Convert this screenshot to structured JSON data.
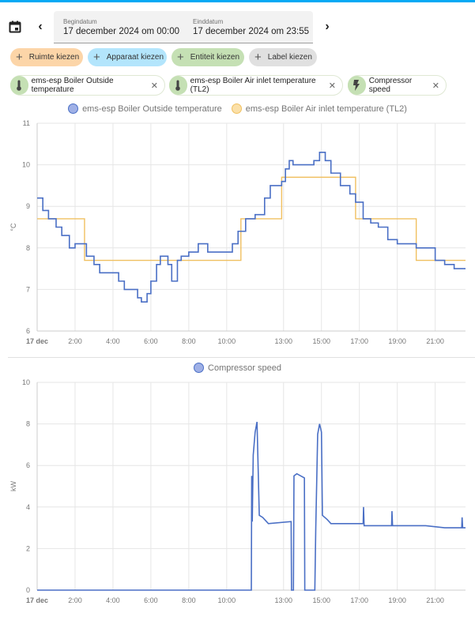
{
  "colors": {
    "accent": "#03a9f4",
    "series_blue": "#4a6fc5",
    "series_orange": "#f0c060",
    "chip_area": "#fcd5a8",
    "chip_device": "#b3e5fc",
    "chip_entity": "#c5e0b4",
    "chip_label": "#e0e0e0"
  },
  "header": {
    "calendar_icon": "calendar-icon",
    "start_label": "Begindatum",
    "start_value": "17 december 2024 om 00:00",
    "end_label": "Einddatum",
    "end_value": "17 december 2024 om 23:55"
  },
  "pickers": [
    {
      "label": "Ruimte kiezen"
    },
    {
      "label": "Apparaat kiezen"
    },
    {
      "label": "Entiteit kiezen"
    },
    {
      "label": "Label kiezen"
    }
  ],
  "entities": [
    {
      "label": "ems-esp Boiler Outside temperature",
      "icon": "thermometer-icon"
    },
    {
      "label": "ems-esp Boiler Air inlet temperature (TL2)",
      "icon": "thermometer-icon"
    },
    {
      "label": "Compressor speed",
      "icon": "lightning-icon"
    }
  ],
  "chart_data": [
    {
      "type": "line",
      "ylabel": "°C",
      "ylim": [
        6,
        11
      ],
      "yticks": [
        "6",
        "7",
        "8",
        "9",
        "10",
        "11"
      ],
      "xlim_hours": [
        0,
        22.6
      ],
      "xticks": [
        {
          "h": 0,
          "label": "17 dec"
        },
        {
          "h": 2,
          "label": "2:00"
        },
        {
          "h": 4,
          "label": "4:00"
        },
        {
          "h": 6,
          "label": "6:00"
        },
        {
          "h": 8,
          "label": "8:00"
        },
        {
          "h": 10,
          "label": "10:00"
        },
        {
          "h": 13,
          "label": "13:00"
        },
        {
          "h": 15,
          "label": "15:00"
        },
        {
          "h": 17,
          "label": "17:00"
        },
        {
          "h": 19,
          "label": "19:00"
        },
        {
          "h": 21,
          "label": "21:00"
        }
      ],
      "grid": true,
      "legend": "top-center",
      "series": [
        {
          "name": "ems-esp Boiler Outside temperature",
          "color": "#4a6fc5",
          "step": true,
          "points": [
            [
              0,
              9.2
            ],
            [
              0.3,
              8.9
            ],
            [
              0.6,
              8.7
            ],
            [
              1,
              8.5
            ],
            [
              1.3,
              8.3
            ],
            [
              1.7,
              8.0
            ],
            [
              2,
              8.1
            ],
            [
              2.3,
              8.1
            ],
            [
              2.6,
              7.8
            ],
            [
              3,
              7.6
            ],
            [
              3.3,
              7.4
            ],
            [
              4,
              7.4
            ],
            [
              4.3,
              7.2
            ],
            [
              4.6,
              7.0
            ],
            [
              5,
              7.0
            ],
            [
              5.3,
              6.8
            ],
            [
              5.5,
              6.7
            ],
            [
              5.8,
              6.9
            ],
            [
              6,
              7.2
            ],
            [
              6.3,
              7.6
            ],
            [
              6.5,
              7.8
            ],
            [
              6.9,
              7.6
            ],
            [
              7.1,
              7.2
            ],
            [
              7.4,
              7.7
            ],
            [
              7.6,
              7.8
            ],
            [
              8,
              7.9
            ],
            [
              8.5,
              8.1
            ],
            [
              9,
              7.9
            ],
            [
              10,
              7.9
            ],
            [
              10.3,
              8.1
            ],
            [
              10.6,
              8.4
            ],
            [
              11,
              8.7
            ],
            [
              11.5,
              8.8
            ],
            [
              12,
              9.2
            ],
            [
              12.3,
              9.5
            ],
            [
              12.9,
              9.6
            ],
            [
              13.1,
              9.9
            ],
            [
              13.3,
              10.1
            ],
            [
              13.5,
              10.0
            ],
            [
              14.3,
              10.0
            ],
            [
              14.6,
              10.1
            ],
            [
              14.9,
              10.3
            ],
            [
              15.2,
              10.1
            ],
            [
              15.5,
              9.8
            ],
            [
              16,
              9.5
            ],
            [
              16.5,
              9.3
            ],
            [
              16.8,
              9.1
            ],
            [
              17.2,
              8.7
            ],
            [
              17.6,
              8.6
            ],
            [
              18,
              8.5
            ],
            [
              18.5,
              8.2
            ],
            [
              19,
              8.1
            ],
            [
              19.6,
              8.1
            ],
            [
              20,
              8.0
            ],
            [
              20.5,
              8.0
            ],
            [
              21,
              7.7
            ],
            [
              21.5,
              7.6
            ],
            [
              22,
              7.5
            ],
            [
              22.6,
              7.5
            ]
          ]
        },
        {
          "name": "ems-esp Boiler Air inlet temperature (TL2)",
          "color": "#f0c060",
          "step": true,
          "points": [
            [
              0,
              8.7
            ],
            [
              2.5,
              7.7
            ],
            [
              10.75,
              8.7
            ],
            [
              12.9,
              9.7
            ],
            [
              16.8,
              8.7
            ],
            [
              20.0,
              7.7
            ],
            [
              22.6,
              7.7
            ]
          ]
        }
      ]
    },
    {
      "type": "line",
      "ylabel": "kW",
      "ylim": [
        0,
        10
      ],
      "yticks": [
        "0",
        "2",
        "4",
        "6",
        "8",
        "10"
      ],
      "xlim_hours": [
        0,
        22.6
      ],
      "xticks": [
        {
          "h": 0,
          "label": "17 dec"
        },
        {
          "h": 2,
          "label": "2:00"
        },
        {
          "h": 4,
          "label": "4:00"
        },
        {
          "h": 6,
          "label": "6:00"
        },
        {
          "h": 8,
          "label": "8:00"
        },
        {
          "h": 10,
          "label": "10:00"
        },
        {
          "h": 13,
          "label": "13:00"
        },
        {
          "h": 15,
          "label": "15:00"
        },
        {
          "h": 17,
          "label": "17:00"
        },
        {
          "h": 19,
          "label": "19:00"
        },
        {
          "h": 21,
          "label": "21:00"
        }
      ],
      "grid": true,
      "legend": "top-center",
      "series": [
        {
          "name": "Compressor speed",
          "color": "#4a6fc5",
          "step": false,
          "points": [
            [
              0,
              0
            ],
            [
              11.3,
              0
            ],
            [
              11.32,
              5.5
            ],
            [
              11.35,
              3.3
            ],
            [
              11.4,
              6.5
            ],
            [
              11.5,
              7.6
            ],
            [
              11.6,
              8.1
            ],
            [
              11.72,
              3.6
            ],
            [
              11.9,
              3.5
            ],
            [
              12.1,
              3.3
            ],
            [
              12.2,
              3.2
            ],
            [
              13.4,
              3.3
            ],
            [
              13.42,
              0
            ],
            [
              13.52,
              0
            ],
            [
              13.55,
              5.5
            ],
            [
              13.7,
              5.6
            ],
            [
              14.1,
              5.4
            ],
            [
              14.12,
              0
            ],
            [
              14.65,
              0
            ],
            [
              14.7,
              3.0
            ],
            [
              14.8,
              7.5
            ],
            [
              14.9,
              8.0
            ],
            [
              15.0,
              7.6
            ],
            [
              15.05,
              3.6
            ],
            [
              15.3,
              3.4
            ],
            [
              15.5,
              3.2
            ],
            [
              16,
              3.2
            ],
            [
              17.2,
              3.2
            ],
            [
              17.22,
              4.0
            ],
            [
              17.25,
              3.1
            ],
            [
              18.7,
              3.1
            ],
            [
              18.72,
              3.8
            ],
            [
              18.75,
              3.1
            ],
            [
              20.5,
              3.1
            ],
            [
              21.5,
              3.0
            ],
            [
              22.4,
              3.0
            ],
            [
              22.42,
              3.5
            ],
            [
              22.45,
              3.0
            ],
            [
              22.6,
              3.0
            ]
          ]
        }
      ]
    }
  ]
}
